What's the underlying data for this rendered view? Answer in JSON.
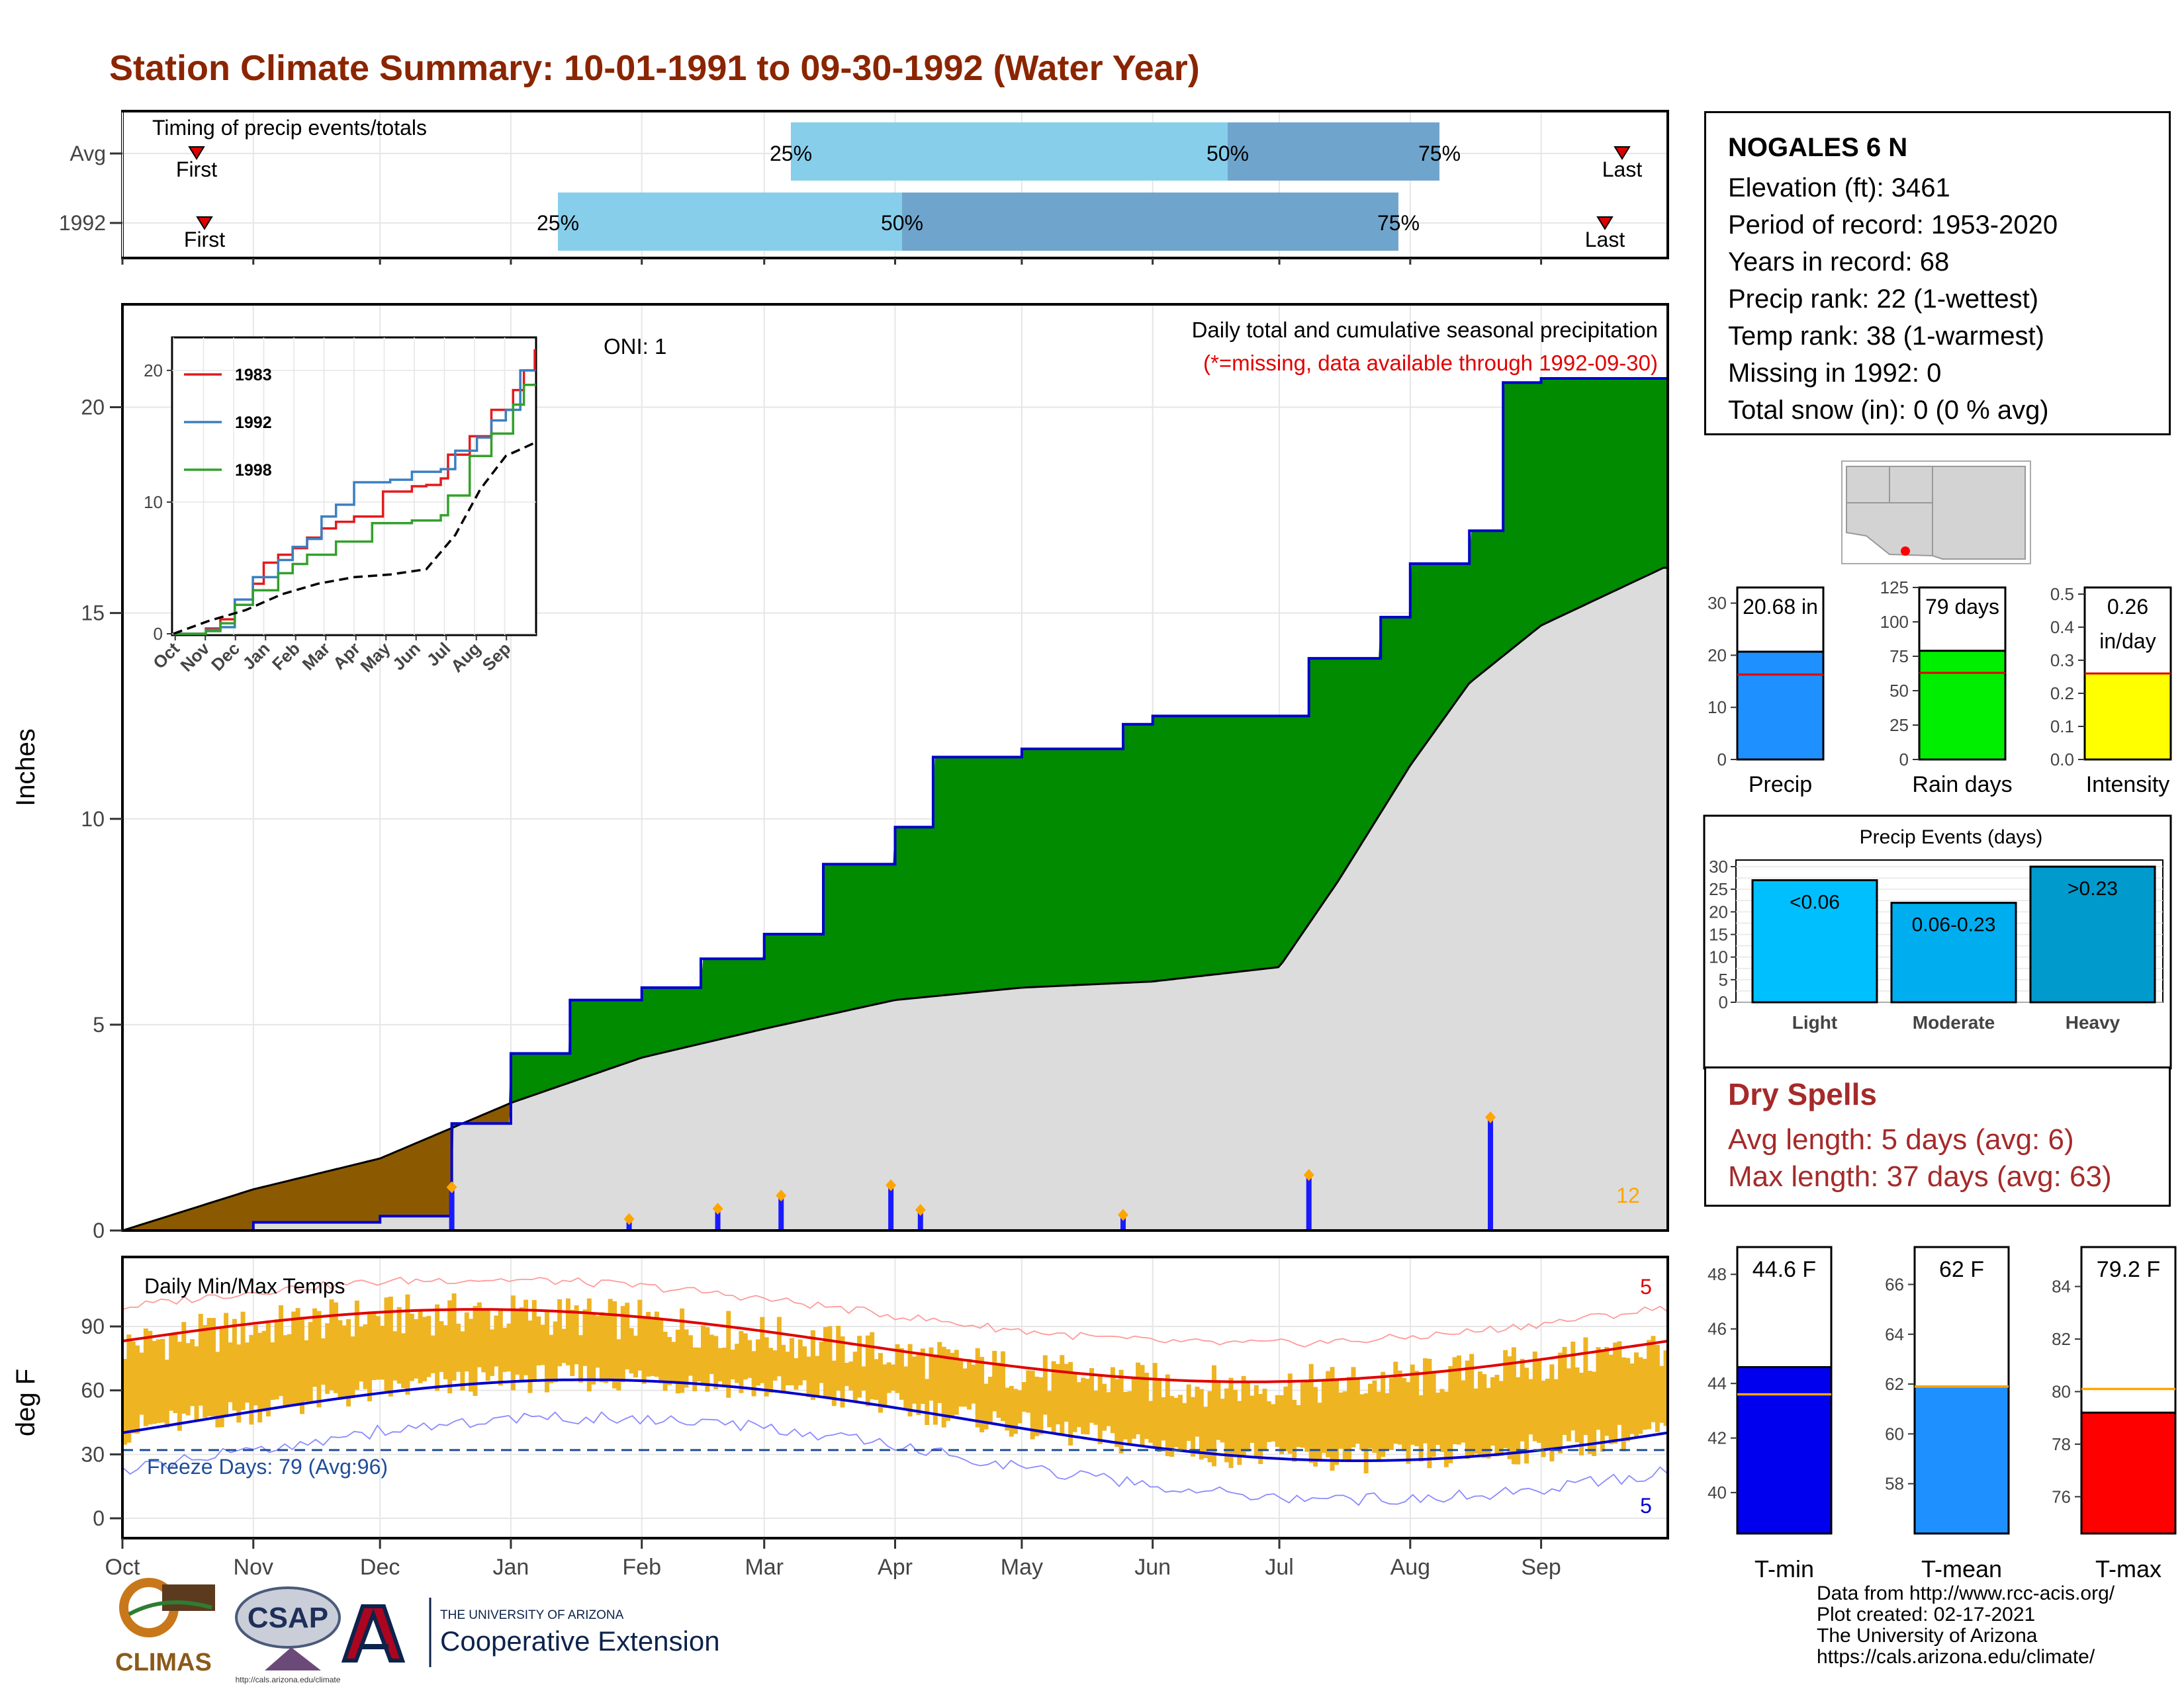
{
  "title": "Station Climate Summary: 10-01-1991 to 09-30-1992 (Water Year)",
  "timing": {
    "label": "Timing of precip events/totals",
    "rows": [
      {
        "label": "Avg",
        "first_label": "First",
        "last_label": "Last",
        "pct25": "25%",
        "pct50": "50%",
        "pct75": "75%"
      },
      {
        "label": "1992",
        "first_label": "First",
        "last_label": "Last",
        "pct25": "25%",
        "pct50": "50%",
        "pct75": "75%"
      }
    ]
  },
  "station": {
    "name": "NOGALES 6 N",
    "lines": [
      "Elevation (ft): 3461",
      "Period of record: 1953-2020",
      "Years in record: 68",
      "Precip rank: 22 (1-wettest)",
      "Temp rank: 38 (1-warmest)",
      "Missing in 1992: 0",
      "Total snow (in): 0 (0 % avg)"
    ]
  },
  "main_chart": {
    "header": "Daily total and cumulative seasonal precipitation",
    "missing_note": "(*=missing, data available through 1992-09-30)",
    "oni": "ONI: 1",
    "ylabel": "Inches",
    "count_label": "12"
  },
  "inset": {
    "legend": [
      "1983",
      "1992",
      "1998"
    ],
    "colors": [
      "#e31a1c",
      "#3a7fc1",
      "#33a02c"
    ],
    "yticks": [
      "0",
      "10",
      "20"
    ],
    "xticks": [
      "Oct",
      "Nov",
      "Dec",
      "Jan",
      "Feb",
      "Mar",
      "Apr",
      "May",
      "Jun",
      "Jul",
      "Aug",
      "Sep"
    ]
  },
  "temp_chart": {
    "title": "Daily Min/Max Temps",
    "ylabel": "deg F",
    "freeze_label": "Freeze Days: 79 (Avg:96)",
    "max_count": "5",
    "min_count": "5",
    "yticks": [
      "0",
      "30",
      "60",
      "90"
    ]
  },
  "months": [
    "Oct",
    "Nov",
    "Dec",
    "Jan",
    "Feb",
    "Mar",
    "Apr",
    "May",
    "Jun",
    "Jul",
    "Aug",
    "Sep"
  ],
  "stat_bars": [
    {
      "label": "Precip",
      "value_label": "20.68 in",
      "value": 20.68,
      "avg": 16.3,
      "yticks": [
        "0",
        "10",
        "20",
        "30"
      ],
      "ymax": 33,
      "color": "#1E90FF"
    },
    {
      "label": "Rain days",
      "value_label": "79 days",
      "value": 79,
      "avg": 63,
      "yticks": [
        "0",
        "25",
        "50",
        "75",
        "100",
        "125"
      ],
      "ymax": 125,
      "color": "#00EE00"
    },
    {
      "label": "Intensity",
      "value_label": "0.26",
      "value_label2": "in/day",
      "value": 0.26,
      "avg": 0.26,
      "yticks": [
        "0.0",
        "0.1",
        "0.2",
        "0.3",
        "0.4",
        "0.5"
      ],
      "ymax": 0.52,
      "color": "#FFFF00"
    }
  ],
  "events": {
    "title": "Precip Events (days)",
    "yticks": [
      "0",
      "5",
      "10",
      "15",
      "20",
      "25",
      "30"
    ],
    "bars": [
      {
        "name": "Light",
        "label": "<0.06",
        "value": 27,
        "color": "#00BFFF"
      },
      {
        "name": "Moderate",
        "label": "0.06-0.23",
        "value": 22,
        "color": "#00AEEF"
      },
      {
        "name": "Heavy",
        "label": ">0.23",
        "value": 30,
        "color": "#009ACD"
      }
    ]
  },
  "dry_spells": {
    "title": "Dry Spells",
    "avg_line": "Avg length: 5 days (avg: 6)",
    "max_line": "Max length: 37 days (avg: 63)"
  },
  "temp_bars": [
    {
      "label": "T-min",
      "value_label": "44.6 F",
      "value": 44.6,
      "avg": 43.6,
      "ymin": 38.5,
      "ymax": 49,
      "yticks": [
        "40",
        "42",
        "44",
        "46",
        "48"
      ],
      "color": "#0000EE"
    },
    {
      "label": "T-mean",
      "value_label": "62 F",
      "value": 61.9,
      "avg": 61.9,
      "ymin": 56,
      "ymax": 67.5,
      "yticks": [
        "58",
        "60",
        "62",
        "64",
        "66"
      ],
      "color": "#1E90FF"
    },
    {
      "label": "T-max",
      "value_label": "79.2 F",
      "value": 79.2,
      "avg": 80.1,
      "ymin": 74.6,
      "ymax": 85.5,
      "yticks": [
        "76",
        "78",
        "80",
        "82",
        "84"
      ],
      "color": "#FF0000"
    }
  ],
  "credits": [
    "Data from http://www.rcc-acis.org/",
    "Plot created: 02-17-2021",
    "The University of Arizona",
    "https://cals.arizona.edu/climate/"
  ],
  "logos": {
    "climas": "CLIMAS",
    "csap": "CSAP",
    "csap_url": "http://cals.arizona.edu/climate",
    "ua_line1": "THE UNIVERSITY OF ARIZONA",
    "ua_line2": "Cooperative Extension"
  },
  "chart_data": {
    "type": "area",
    "title": "Daily total and cumulative seasonal precipitation",
    "ylabel": "Inches",
    "ylim": [
      0,
      22.5
    ],
    "x_months": [
      "Oct",
      "Nov",
      "Dec",
      "Jan",
      "Feb",
      "Mar",
      "Apr",
      "May",
      "Jun",
      "Jul",
      "Aug",
      "Sep"
    ],
    "series": [
      {
        "name": "1992",
        "color": "#0000CD",
        "x": [
          "1991-10-01",
          "1991-11-01",
          "1991-12-01",
          "1991-12-18",
          "1992-01-01",
          "1992-01-15",
          "1992-02-01",
          "1992-02-15",
          "1992-03-01",
          "1992-03-15",
          "1992-04-01",
          "1992-04-10",
          "1992-05-01",
          "1992-05-25",
          "1992-06-01",
          "1992-07-01",
          "1992-07-08",
          "1992-07-25",
          "1992-08-01",
          "1992-08-15",
          "1992-08-23",
          "1992-09-01",
          "1992-09-30"
        ],
        "y": [
          0.0,
          0.2,
          0.35,
          2.6,
          4.3,
          5.6,
          5.9,
          6.6,
          7.2,
          8.9,
          9.8,
          11.5,
          11.7,
          12.3,
          12.5,
          12.5,
          13.9,
          14.9,
          16.2,
          17.0,
          20.6,
          20.7,
          20.7
        ]
      },
      {
        "name": "Avg",
        "color": "#000000",
        "x": [
          "1991-10-01",
          "1991-11-01",
          "1991-12-01",
          "1992-01-01",
          "1992-02-01",
          "1992-03-01",
          "1992-04-01",
          "1992-05-01",
          "1992-06-01",
          "1992-07-01",
          "1992-07-15",
          "1992-08-01",
          "1992-08-15",
          "1992-09-01",
          "1992-09-30"
        ],
        "y": [
          0.0,
          1.0,
          1.75,
          3.1,
          4.2,
          4.9,
          5.6,
          5.9,
          6.05,
          6.4,
          8.5,
          11.3,
          13.3,
          14.7,
          16.1
        ]
      }
    ],
    "daily_precip": {
      "x": [
        "1991-12-18",
        "1992-01-29",
        "1992-02-19",
        "1992-03-05",
        "1992-03-31",
        "1992-04-07",
        "1992-05-25",
        "1992-07-08",
        "1992-08-20"
      ],
      "y": [
        1.05,
        0.28,
        0.53,
        0.85,
        1.1,
        0.5,
        0.38,
        1.35,
        2.75
      ]
    },
    "grid": true,
    "legend": "none"
  }
}
